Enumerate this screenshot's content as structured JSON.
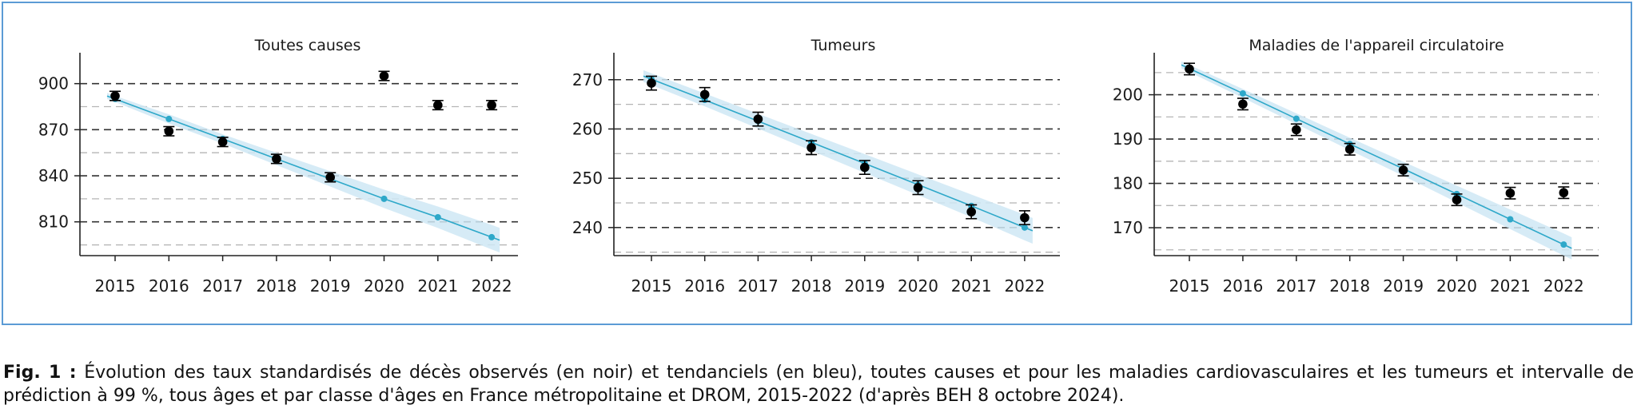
{
  "colors": {
    "frame": "#5b9bd5",
    "observed": "#000000",
    "trend": "#2ea8c9",
    "band": "#cfe8f5"
  },
  "chart_data": [
    {
      "type": "scatter",
      "title": "Toutes causes",
      "x": [
        2015,
        2016,
        2017,
        2018,
        2019,
        2020,
        2021,
        2022
      ],
      "x_tick_labels": [
        "2015",
        "2016",
        "2017",
        "2018",
        "2019",
        "2020",
        "2021",
        "2022"
      ],
      "y_ticks": [
        810,
        840,
        870,
        900
      ],
      "y_tick_labels": [
        "810",
        "840",
        "870",
        "900"
      ],
      "ylim": [
        788,
        917
      ],
      "dashed_minor_gridlines": [
        795,
        825,
        855,
        885
      ],
      "series": [
        {
          "role": "observed",
          "values": [
            892,
            869,
            862,
            851,
            839,
            905,
            886,
            886
          ],
          "err": [
            3,
            3,
            3,
            3,
            3,
            3,
            3,
            3
          ]
        },
        {
          "role": "trend",
          "values": [
            890,
            877,
            864,
            851,
            838,
            825,
            813,
            800
          ]
        }
      ],
      "band_halfwidth": [
        2,
        3,
        3,
        4,
        5,
        6,
        7,
        8
      ]
    },
    {
      "type": "scatter",
      "title": "Tumeurs",
      "x": [
        2015,
        2016,
        2017,
        2018,
        2019,
        2020,
        2021,
        2022
      ],
      "x_tick_labels": [
        "2015",
        "2016",
        "2017",
        "2018",
        "2019",
        "2020",
        "2021",
        "2022"
      ],
      "y_ticks": [
        240,
        250,
        260,
        270
      ],
      "y_tick_labels": [
        "240",
        "250",
        "260",
        "270"
      ],
      "ylim": [
        234.3,
        274.5
      ],
      "dashed_minor_gridlines": [
        235,
        245,
        255,
        265
      ],
      "series": [
        {
          "role": "observed",
          "values": [
            269.3,
            267,
            262,
            256.2,
            252.2,
            248.1,
            243.2,
            242
          ],
          "err": [
            1.4,
            1.4,
            1.4,
            1.4,
            1.4,
            1.4,
            1.4,
            1.4
          ]
        },
        {
          "role": "trend",
          "values": [
            270.1,
            265.9,
            261.6,
            257.3,
            253,
            248.7,
            244.4,
            240
          ]
        }
      ],
      "band_halfwidth": [
        1.2,
        1.3,
        1.5,
        1.7,
        1.9,
        2.1,
        2.3,
        2.6
      ]
    },
    {
      "type": "scatter",
      "title": "Maladies de l'appareil circulatoire",
      "x": [
        2015,
        2016,
        2017,
        2018,
        2019,
        2020,
        2021,
        2022
      ],
      "x_tick_labels": [
        "2015",
        "2016",
        "2017",
        "2018",
        "2019",
        "2020",
        "2021",
        "2022"
      ],
      "y_ticks": [
        170,
        180,
        190,
        200
      ],
      "y_tick_labels": [
        "170",
        "180",
        "190",
        "200"
      ],
      "ylim": [
        163.7,
        208.4
      ],
      "dashed_minor_gridlines": [
        165,
        175,
        185,
        195,
        205
      ],
      "series": [
        {
          "role": "observed",
          "values": [
            205.8,
            197.9,
            192.1,
            187.7,
            183,
            176.3,
            177.8,
            177.9
          ],
          "err": [
            1.3,
            1.3,
            1.3,
            1.3,
            1.3,
            1.3,
            1.3,
            1.3
          ]
        },
        {
          "role": "trend",
          "values": [
            205.9,
            200.3,
            194.6,
            188.9,
            183.3,
            177.6,
            171.9,
            166.2
          ]
        }
      ],
      "band_halfwidth": [
        0.8,
        1,
        1.2,
        1.4,
        1.6,
        1.9,
        2.2,
        2.5
      ]
    }
  ],
  "caption": {
    "label": "Fig. 1 :",
    "text": "Évolution des taux standardisés de décès observés (en noir) et tendanciels (en bleu), toutes causes et pour les maladies cardiovasculaires et les tumeurs et intervalle de prédiction à 99 %, tous âges et par classe d'âges en France métropolitaine et DROM, 2015-2022 (d'après BEH 8 octobre 2024)."
  }
}
